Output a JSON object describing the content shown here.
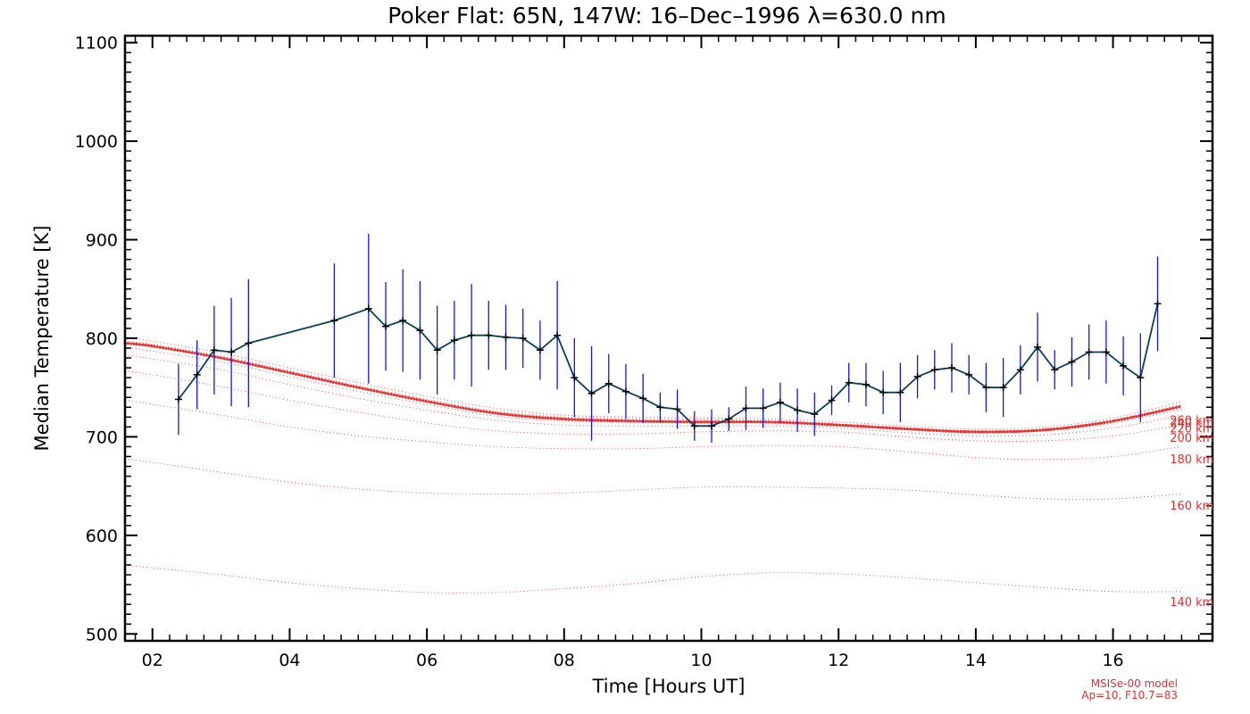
{
  "chart_data": {
    "type": "line",
    "title": "Poker Flat: 65N, 147W: 16–Dec–1996 λ=630.0 nm",
    "xlabel": "Time [Hours UT]",
    "ylabel": "Median Temperature [K]",
    "xlim": [
      1.6,
      17.45
    ],
    "ylim": [
      493,
      1107
    ],
    "x_ticks": [
      2,
      4,
      6,
      8,
      10,
      12,
      14,
      16
    ],
    "x_tick_labels": [
      "02",
      "04",
      "06",
      "08",
      "10",
      "12",
      "14",
      "16"
    ],
    "y_ticks": [
      500,
      600,
      700,
      800,
      900,
      1000,
      1100
    ],
    "y_tick_labels": [
      "500",
      "600",
      "700",
      "800",
      "900",
      "1000",
      "1100"
    ],
    "observed": {
      "name": "Median Temperature",
      "color": "#0a3f5c",
      "error_color": "#1414f0",
      "x": [
        2.38,
        2.65,
        2.9,
        3.15,
        3.4,
        4.65,
        5.15,
        5.4,
        5.65,
        5.9,
        6.15,
        6.4,
        6.65,
        6.9,
        7.15,
        7.4,
        7.65,
        7.9,
        8.15,
        8.4,
        8.65,
        8.9,
        9.15,
        9.4,
        9.65,
        9.9,
        10.15,
        10.4,
        10.65,
        10.9,
        11.15,
        11.4,
        11.65,
        11.9,
        12.15,
        12.4,
        12.65,
        12.9,
        13.15,
        13.4,
        13.65,
        13.9,
        14.15,
        14.4,
        14.65,
        14.9,
        15.15,
        15.4,
        15.65,
        15.9,
        16.15,
        16.4,
        16.65
      ],
      "y": [
        738,
        763,
        788,
        786,
        795,
        818,
        830,
        812,
        818,
        808,
        788,
        798,
        803,
        803,
        801,
        800,
        788,
        803,
        760,
        744,
        754,
        746,
        739,
        730,
        728,
        711,
        711,
        718,
        729,
        729,
        735,
        727,
        723,
        737,
        755,
        753,
        745,
        745,
        761,
        768,
        770,
        763,
        750,
        750,
        768,
        791,
        768,
        776,
        786,
        786,
        772,
        760,
        835
      ],
      "err": [
        36,
        35,
        45,
        55,
        65,
        58,
        76,
        45,
        52,
        50,
        45,
        40,
        52,
        35,
        33,
        30,
        30,
        55,
        40,
        48,
        30,
        28,
        25,
        15,
        20,
        15,
        17,
        12,
        22,
        20,
        20,
        22,
        22,
        15,
        20,
        22,
        22,
        30,
        22,
        20,
        25,
        20,
        25,
        30,
        25,
        35,
        20,
        25,
        28,
        32,
        30,
        45,
        48
      ]
    },
    "model_curves": [
      {
        "label": "140 km",
        "x": [
          1.6,
          2,
          3,
          4,
          5,
          6,
          7,
          8,
          9,
          10,
          11,
          12,
          13,
          14,
          15,
          16,
          17
        ],
        "y": [
          570,
          567,
          560,
          552,
          546,
          542,
          542,
          546,
          551,
          558,
          562,
          561,
          557,
          552,
          547,
          543,
          543
        ]
      },
      {
        "label": "160 km",
        "x": [
          1.6,
          2,
          3,
          4,
          5,
          6,
          7,
          8,
          9,
          10,
          11,
          12,
          13,
          14,
          15,
          16,
          17
        ],
        "y": [
          678,
          674,
          664,
          654,
          647,
          643,
          642,
          643,
          646,
          649,
          649,
          648,
          646,
          641,
          637,
          637,
          642
        ]
      },
      {
        "label": "180 km",
        "x": [
          1.6,
          2,
          3,
          4,
          5,
          6,
          7,
          8,
          9,
          10,
          11,
          12,
          13,
          14,
          15,
          16,
          17
        ],
        "y": [
          737,
          733,
          722,
          710,
          701,
          695,
          690,
          688,
          688,
          690,
          691,
          690,
          685,
          679,
          677,
          680,
          690
        ]
      },
      {
        "label": "200 km",
        "x": [
          1.6,
          2,
          3,
          4,
          5,
          6,
          7,
          8,
          9,
          10,
          11,
          12,
          13,
          14,
          15,
          16,
          17
        ],
        "y": [
          767,
          763,
          751,
          737,
          725,
          714,
          706,
          703,
          703,
          705,
          706,
          705,
          700,
          696,
          696,
          701,
          712
        ]
      },
      {
        "label": "220 km",
        "x": [
          1.6,
          2,
          3,
          4,
          5,
          6,
          7,
          8,
          9,
          10,
          11,
          12,
          13,
          14,
          15,
          16,
          17
        ],
        "y": [
          783,
          779,
          768,
          753,
          739,
          727,
          717,
          712,
          711,
          711,
          711,
          709,
          704,
          701,
          702,
          709,
          722
        ]
      },
      {
        "label": "240 km",
        "x": [
          1.6,
          2,
          3,
          4,
          5,
          6,
          7,
          8,
          9,
          10,
          11,
          12,
          13,
          14,
          15,
          16,
          17
        ],
        "y": [
          791,
          787,
          776,
          761,
          746,
          733,
          721,
          716,
          715,
          714,
          714,
          711,
          707,
          704,
          706,
          714,
          728
        ]
      },
      {
        "label": "260 km",
        "x": [
          1.6,
          2,
          3,
          4,
          5,
          6,
          7,
          8,
          9,
          10,
          11,
          12,
          13,
          14,
          15,
          16,
          17
        ],
        "y": [
          795,
          792,
          780,
          765,
          750,
          736,
          724,
          718,
          716,
          715,
          715,
          712,
          708,
          705,
          707,
          716,
          731
        ]
      },
      {
        "label": "",
        "x": [
          1.6,
          2,
          3,
          4,
          5,
          6,
          7,
          8,
          9,
          10,
          11,
          12,
          13,
          14,
          15,
          16,
          17
        ],
        "y": [
          797,
          794,
          782,
          767,
          752,
          738,
          726,
          720,
          718,
          717,
          716,
          713,
          709,
          706,
          708,
          717,
          733
        ]
      },
      {
        "label": "",
        "x": [
          1.6,
          2,
          3,
          4,
          5,
          6,
          7,
          8,
          9,
          10,
          11,
          12,
          13,
          14,
          15,
          16,
          17
        ],
        "y": [
          801,
          797,
          785,
          770,
          755,
          741,
          729,
          722,
          720,
          719,
          718,
          715,
          711,
          708,
          710,
          719,
          736
        ]
      }
    ],
    "peak_curve_index": 6,
    "model_note": [
      "MSISe-00 model",
      "Ap=10, F10.7=83"
    ],
    "colors": {
      "model": "#e83030",
      "observed": "#0a3f5c",
      "errorbar": "#1414f0",
      "axis": "#000000"
    }
  }
}
